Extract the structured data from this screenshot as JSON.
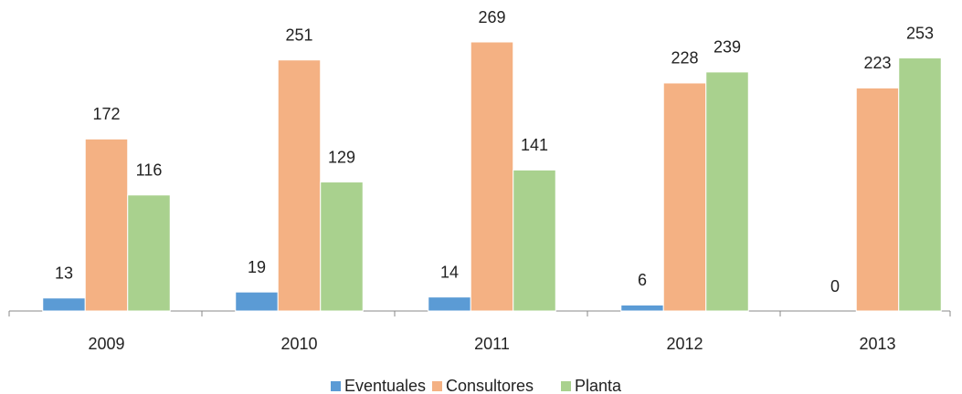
{
  "chart_data": {
    "type": "bar",
    "categories": [
      "2009",
      "2010",
      "2011",
      "2012",
      "2013"
    ],
    "series": [
      {
        "name": "Eventuales",
        "color": "#5b9bd5",
        "values": [
          13,
          19,
          14,
          6,
          0
        ]
      },
      {
        "name": "Consultores",
        "color": "#f4b183",
        "values": [
          172,
          251,
          269,
          228,
          223
        ]
      },
      {
        "name": "Planta",
        "color": "#a9d18e",
        "values": [
          116,
          129,
          141,
          239,
          253
        ]
      }
    ]
  }
}
